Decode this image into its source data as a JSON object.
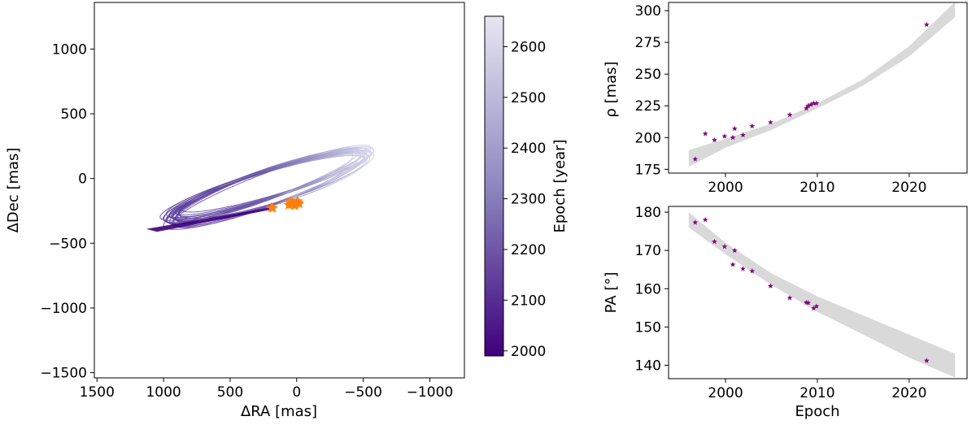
{
  "chart_data": [
    {
      "type": "line",
      "panel": "orbit",
      "xlabel": "ΔRA [mas]",
      "ylabel": "ΔDec [mas]",
      "xlim": [
        1520,
        -1260
      ],
      "ylim": [
        -1540,
        1360
      ],
      "xticks": [
        1500,
        1000,
        500,
        0,
        -500,
        -1000
      ],
      "yticks": [
        1000,
        500,
        0,
        -500,
        -1000,
        -1500
      ],
      "xtick_labels": [
        "1500",
        "1000",
        "500",
        "0",
        "−500",
        "−1000"
      ],
      "ytick_labels": [
        "1000",
        "500",
        "0",
        "−500",
        "−1000",
        "−1500"
      ],
      "colorbar": {
        "label": "Epoch [year]",
        "range": [
          1990,
          2660
        ],
        "ticks": [
          2000,
          2100,
          2200,
          2300,
          2400,
          2500,
          2600
        ],
        "tick_labels": [
          "2000",
          "2100",
          "2200",
          "2300",
          "2400",
          "2500",
          "2600"
        ],
        "colormap": [
          "#3f007d",
          "#8c88bf",
          "#e8e6f2"
        ]
      },
      "orbit_bundle": {
        "n_orbits": 22,
        "semi_major_mas": [
          720,
          830
        ],
        "semi_minor_mas": [
          95,
          135
        ],
        "center_ra_mas": [
          175,
          265
        ],
        "center_dec_mas": [
          -30,
          -85
        ],
        "tilt_deg": [
          17,
          21
        ]
      },
      "observed_points": {
        "color": "#ff7f0e",
        "ra": [
          190,
          180,
          50,
          40,
          30,
          20,
          10,
          0,
          -10,
          -20,
          60,
          45,
          15,
          -5
        ],
        "dec": [
          -225,
          -230,
          -190,
          -200,
          -185,
          -195,
          -200,
          -190,
          -185,
          -195,
          -205,
          -180,
          -210,
          -175
        ]
      }
    },
    {
      "type": "scatter",
      "panel": "separation",
      "xlabel": "",
      "ylabel": "ρ [mas]",
      "xlim": [
        1993.8,
        2026.3
      ],
      "ylim": [
        172.0,
        306.5
      ],
      "xticks": [
        2000,
        2010,
        2020
      ],
      "yticks": [
        175,
        200,
        225,
        250,
        275,
        300
      ],
      "xtick_labels": [
        "2000",
        "2010",
        "2020"
      ],
      "ytick_labels": [
        "175",
        "200",
        "225",
        "250",
        "275",
        "300"
      ],
      "band": {
        "color": "#d9d9d9",
        "x": [
          1996,
          2000,
          2005,
          2010,
          2015,
          2020,
          2025
        ],
        "lower": [
          177,
          192,
          206,
          223,
          241,
          264,
          295
        ],
        "upper": [
          190,
          199,
          211,
          227,
          246,
          272,
          307
        ]
      },
      "points": {
        "color": "#800080",
        "x": [
          1996.7,
          1997.8,
          1998.8,
          1999.9,
          2000.8,
          2001.0,
          2001.9,
          2002.9,
          2004.9,
          2007.0,
          2008.8,
          2009.0,
          2009.3,
          2009.6,
          2009.9,
          2021.9
        ],
        "y": [
          183,
          203,
          198,
          201,
          200,
          207,
          202,
          209,
          212,
          218,
          223,
          225,
          226,
          227,
          227,
          289
        ]
      }
    },
    {
      "type": "scatter",
      "panel": "position-angle",
      "xlabel": "Epoch",
      "ylabel": "PA [°]",
      "xlim": [
        1993.8,
        2026.3
      ],
      "ylim": [
        136.5,
        181.5
      ],
      "xticks": [
        2000,
        2010,
        2020
      ],
      "yticks": [
        140,
        150,
        160,
        170,
        180
      ],
      "xtick_labels": [
        "2000",
        "2010",
        "2020"
      ],
      "ytick_labels": [
        "140",
        "150",
        "160",
        "170",
        "180"
      ],
      "band": {
        "color": "#d9d9d9",
        "x": [
          1996,
          2000,
          2005,
          2010,
          2015,
          2020,
          2025
        ],
        "lower": [
          176,
          169,
          161,
          154,
          148,
          142,
          136.8
        ],
        "upper": [
          180,
          172,
          164,
          158,
          153,
          148,
          143
        ]
      },
      "points": {
        "color": "#800080",
        "x": [
          1996.7,
          1997.8,
          1998.8,
          1999.9,
          2000.8,
          2001.0,
          2001.9,
          2002.9,
          2004.9,
          2007.0,
          2008.8,
          2009.0,
          2009.6,
          2009.9,
          2021.9
        ],
        "y": [
          177.3,
          178.0,
          172.3,
          171.0,
          166.3,
          170.0,
          165.2,
          164.6,
          160.7,
          157.6,
          156.4,
          156.3,
          154.9,
          155.4,
          141.2
        ]
      }
    }
  ]
}
